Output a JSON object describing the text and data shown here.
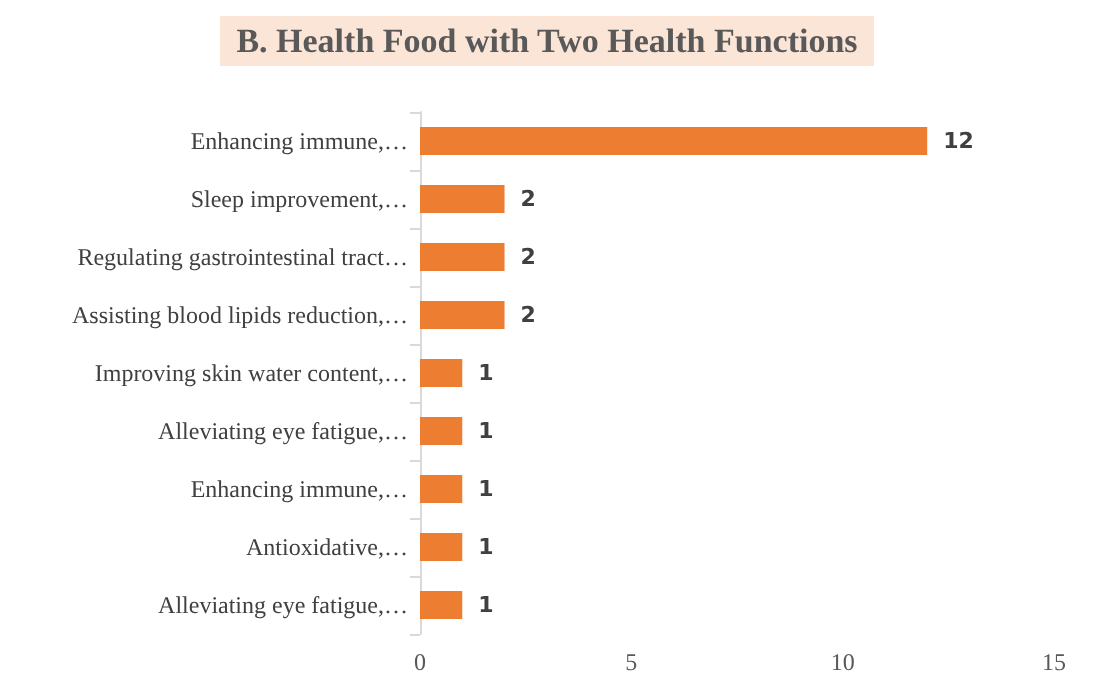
{
  "chart_data": {
    "type": "bar",
    "orientation": "horizontal",
    "title": "B. Health Food with Two Health Functions",
    "categories": [
      "Enhancing immune,…",
      "Sleep improvement,…",
      "Regulating gastrointestinal tract…",
      "Assisting blood lipids reduction,…",
      "Improving skin water content,…",
      "Alleviating eye fatigue,…",
      "Enhancing immune,…",
      "Antioxidative,…",
      "Alleviating eye fatigue,…"
    ],
    "values": [
      12,
      2,
      2,
      2,
      1,
      1,
      1,
      1,
      1
    ],
    "color": "#ed7d31",
    "xlim": [
      0,
      15
    ],
    "xticks": [
      0,
      5,
      10,
      15
    ],
    "grid": false,
    "data_labels": true
  }
}
